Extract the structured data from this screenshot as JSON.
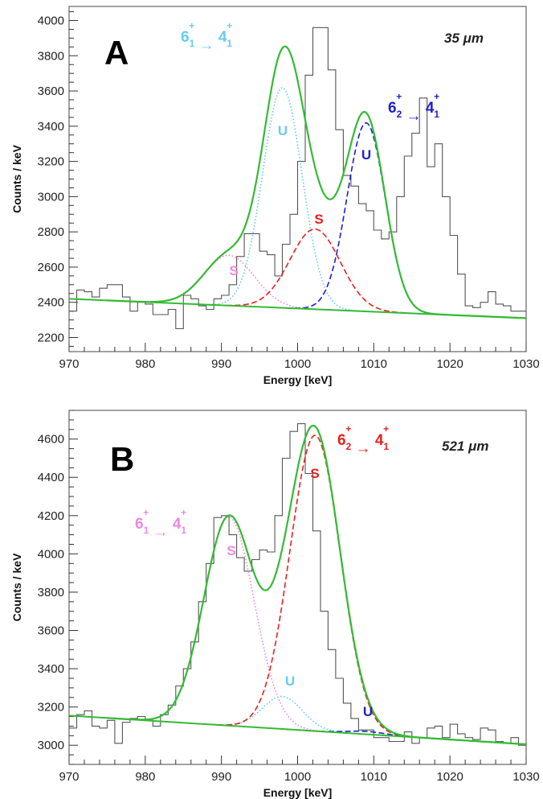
{
  "colors": {
    "fit": "#33bb33",
    "background": "#33bb33",
    "histogram": "#555555",
    "light_blue": "#66ccee",
    "dark_blue": "#1f1fcc",
    "red": "#e8201e",
    "pink": "#ee88dd",
    "baseline_dots": "#3399aa"
  },
  "chart_data": [
    {
      "type": "line",
      "panel_label": "A",
      "thickness": "35 μm",
      "xlabel": "Energy [keV]",
      "ylabel": "Counts / keV",
      "xlim": [
        970,
        1030
      ],
      "ylim": [
        2120,
        4080
      ],
      "x_ticks": [
        "970",
        "980",
        "990",
        "1000",
        "1010",
        "1020",
        "1030"
      ],
      "y_ticks": [
        "2200",
        "2400",
        "2600",
        "2800",
        "3000",
        "3200",
        "3400",
        "3600",
        "3800",
        "4000"
      ],
      "background_line": {
        "x": [
          970,
          1030
        ],
        "y": [
          2420,
          2310
        ]
      },
      "peaks": [
        {
          "tag": "S",
          "center": 991,
          "sigma": 3.3,
          "amplitude": 285,
          "color_key": "pink",
          "style": "dotted"
        },
        {
          "tag": "U",
          "center": 998,
          "sigma": 2.6,
          "amplitude": 1250,
          "color_key": "light_blue",
          "style": "dotted"
        },
        {
          "tag": "S",
          "center": 1002.3,
          "sigma": 3.3,
          "amplitude": 455,
          "color_key": "red",
          "style": "dashed"
        },
        {
          "tag": "U",
          "center": 1009,
          "sigma": 2.5,
          "amplitude": 1070,
          "color_key": "dark_blue",
          "style": "dashed"
        }
      ],
      "transitions": [
        {
          "a": "6",
          "a_sub": "1",
          "a_sup": "+",
          "b": "4",
          "b_sub": "1",
          "b_sup": "+",
          "color_key": "light_blue"
        },
        {
          "a": "6",
          "a_sub": "2",
          "a_sup": "+",
          "b": "4",
          "b_sub": "1",
          "b_sup": "+",
          "color_key": "dark_blue"
        }
      ],
      "histogram": {
        "x_start": 970,
        "bin_width": 1,
        "counts": [
          2350,
          2470,
          2460,
          2430,
          2480,
          2500,
          2500,
          2430,
          2350,
          2400,
          2390,
          2330,
          2330,
          2360,
          2250,
          2440,
          2420,
          2380,
          2360,
          2420,
          2440,
          2500,
          2660,
          2790,
          2790,
          2690,
          2670,
          2550,
          2730,
          2900,
          3200,
          3690,
          3960,
          3960,
          3720,
          3380,
          3120,
          3060,
          2960,
          2920,
          2810,
          2760,
          2800,
          3000,
          3230,
          3360,
          3560,
          3170,
          3300,
          3000,
          2780,
          2560,
          2380,
          2370,
          2400,
          2460,
          2390,
          2380,
          2350,
          2350
        ]
      }
    },
    {
      "type": "line",
      "panel_label": "B",
      "thickness": "521 μm",
      "xlabel": "Energy [keV]",
      "ylabel": "Counts / keV",
      "xlim": [
        970,
        1030
      ],
      "ylim": [
        2900,
        4750
      ],
      "x_ticks": [
        "970",
        "980",
        "990",
        "1000",
        "1010",
        "1020",
        "1030"
      ],
      "y_ticks": [
        "3000",
        "3200",
        "3400",
        "3600",
        "3800",
        "4000",
        "4200",
        "4400",
        "4600"
      ],
      "background_line": {
        "x": [
          970,
          1030
        ],
        "y": [
          3155,
          3005
        ]
      },
      "peaks": [
        {
          "tag": "S",
          "center": 991,
          "sigma": 3.3,
          "amplitude": 1090,
          "color_key": "pink",
          "style": "dotted"
        },
        {
          "tag": "U",
          "center": 998,
          "sigma": 2.6,
          "amplitude": 170,
          "color_key": "light_blue",
          "style": "dotted"
        },
        {
          "tag": "S",
          "center": 1002.3,
          "sigma": 3.3,
          "amplitude": 1545,
          "color_key": "red",
          "style": "dashed"
        },
        {
          "tag": "U",
          "center": 1009,
          "sigma": 2.5,
          "amplitude": 15,
          "color_key": "dark_blue",
          "style": "dashed"
        }
      ],
      "transitions": [
        {
          "a": "6",
          "a_sub": "1",
          "a_sup": "+",
          "b": "4",
          "b_sub": "1",
          "b_sup": "+",
          "color_key": "pink"
        },
        {
          "a": "6",
          "a_sub": "2",
          "a_sup": "+",
          "b": "4",
          "b_sub": "1",
          "b_sup": "+",
          "color_key": "red"
        }
      ],
      "histogram": {
        "x_start": 970,
        "bin_width": 1,
        "counts": [
          3090,
          3160,
          3180,
          3100,
          3090,
          3130,
          3010,
          3120,
          3140,
          3150,
          3130,
          3100,
          3160,
          3210,
          3310,
          3400,
          3540,
          3750,
          3950,
          4190,
          4200,
          4100,
          3980,
          3910,
          3970,
          4020,
          4010,
          4200,
          4500,
          4640,
          4680,
          4420,
          4120,
          3700,
          3500,
          3350,
          3220,
          3140,
          3080,
          3080,
          3040,
          3040,
          3020,
          3020,
          3070,
          3010,
          3040,
          3090,
          3100,
          3040,
          3110,
          3060,
          3040,
          3030,
          3090,
          3080,
          3020,
          3010,
          3040,
          3000
        ]
      }
    }
  ]
}
